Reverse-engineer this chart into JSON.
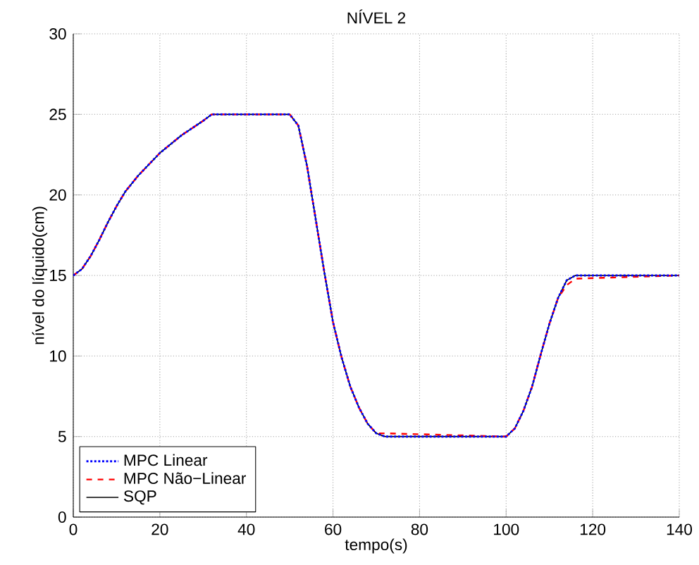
{
  "chart_data": {
    "type": "line",
    "title": "NÍVEL 2",
    "xlabel": "tempo(s)",
    "ylabel": "nível do líquido(cm)",
    "x": [
      0,
      2,
      4,
      6,
      8,
      10,
      12,
      15,
      20,
      25,
      30,
      32,
      50,
      52,
      54,
      56,
      58,
      60,
      62,
      64,
      66,
      68,
      70,
      72,
      100,
      102,
      104,
      106,
      108,
      110,
      112,
      114,
      116,
      140
    ],
    "series": [
      {
        "name": "MPC Linear",
        "color": "#0000ff",
        "line_style": "dotted",
        "values": [
          15,
          15.4,
          16.2,
          17.2,
          18.3,
          19.3,
          20.2,
          21.2,
          22.6,
          23.7,
          24.6,
          25,
          25,
          24.3,
          21.8,
          18.5,
          15.2,
          12.1,
          9.9,
          8.1,
          6.8,
          5.8,
          5.2,
          5,
          5,
          5.5,
          6.6,
          8.1,
          10.1,
          12,
          13.6,
          14.7,
          15,
          15
        ]
      },
      {
        "name": "MPC Não−Linear",
        "color": "#ff0000",
        "line_style": "dashed",
        "values": [
          15,
          15.4,
          16.2,
          17.2,
          18.3,
          19.3,
          20.2,
          21.2,
          22.6,
          23.7,
          24.6,
          25,
          25,
          24.3,
          21.8,
          18.5,
          15.2,
          12.1,
          9.9,
          8.1,
          6.8,
          5.8,
          5.2,
          5.2,
          5,
          5.5,
          6.6,
          8.1,
          10.1,
          12,
          13.6,
          14.4,
          14.8,
          15
        ]
      },
      {
        "name": "SQP",
        "color": "#000000",
        "line_style": "solid",
        "values": [
          15,
          15.4,
          16.2,
          17.2,
          18.3,
          19.3,
          20.2,
          21.2,
          22.6,
          23.7,
          24.6,
          25,
          25,
          24.3,
          21.8,
          18.5,
          15.2,
          12.1,
          9.9,
          8.1,
          6.8,
          5.8,
          5.2,
          5,
          5,
          5.5,
          6.6,
          8.1,
          10.1,
          12,
          13.6,
          14.7,
          15,
          15
        ]
      }
    ],
    "xlim": [
      0,
      140
    ],
    "ylim": [
      0,
      30
    ],
    "xticks": [
      0,
      20,
      40,
      60,
      80,
      100,
      120,
      140
    ],
    "yticks": [
      0,
      5,
      10,
      15,
      20,
      25,
      30
    ],
    "grid": true,
    "legend": "bottom left"
  }
}
